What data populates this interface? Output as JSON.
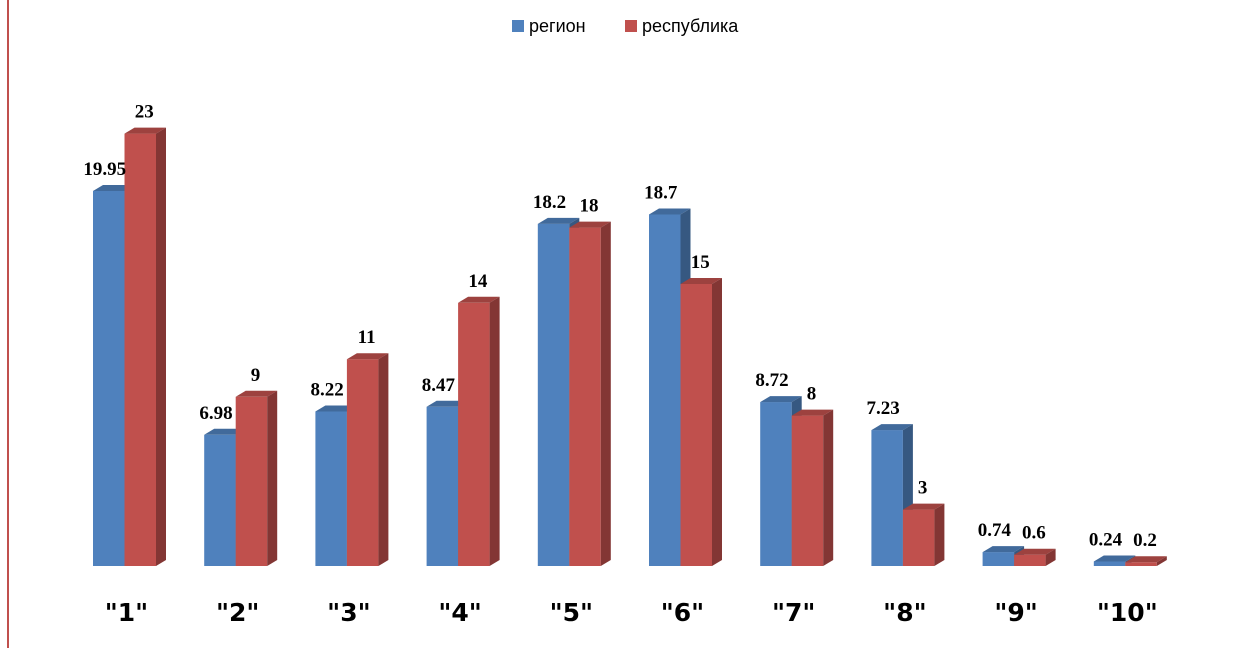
{
  "chart_data": {
    "type": "bar",
    "categories": [
      "\"1\"",
      "\"2\"",
      "\"3\"",
      "\"4\"",
      "\"5\"",
      "\"6\"",
      "\"7\"",
      "\"8\"",
      "\"9\"",
      "\"10\""
    ],
    "series": [
      {
        "name": "регион",
        "color": "#4f81bd",
        "values": [
          19.95,
          6.98,
          8.22,
          8.47,
          18.2,
          18.7,
          8.72,
          7.23,
          0.74,
          0.24
        ],
        "labels": [
          "19.95",
          "6.98",
          "8.22",
          "8.47",
          "18.2",
          "18.7",
          "8.72",
          "7.23",
          "0.74",
          "0.24"
        ]
      },
      {
        "name": "республика",
        "color": "#c0504d",
        "values": [
          23,
          9,
          11,
          14,
          18,
          15,
          8,
          3,
          0.6,
          0.2
        ],
        "labels": [
          "23",
          "9",
          "11",
          "14",
          "18",
          "15",
          "8",
          "3",
          "0.6",
          "0.2"
        ]
      }
    ],
    "title": "",
    "xlabel": "",
    "ylabel": "",
    "ylim": [
      0,
      23
    ],
    "grid": false,
    "legend_position": "top-center",
    "style": "3d-clustered-column"
  }
}
